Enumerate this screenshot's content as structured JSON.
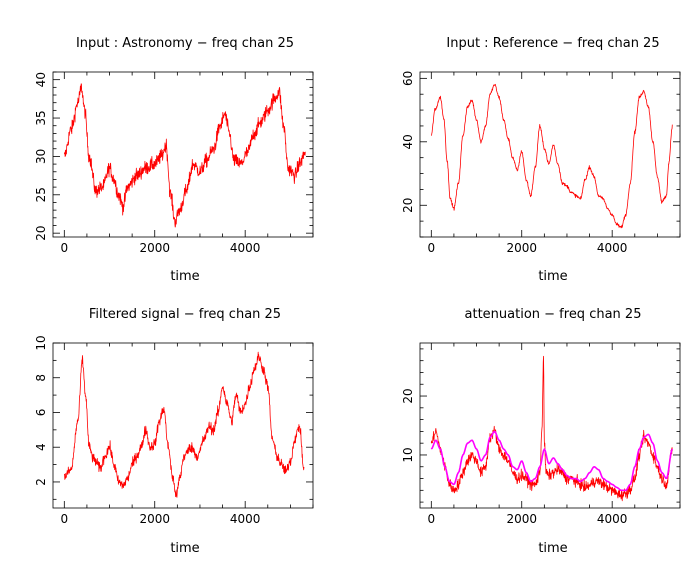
{
  "colors": {
    "series_main": "#ff0000",
    "series_model": "#ff00ff",
    "axes": "#000000",
    "background": "#ffffff"
  },
  "chart_data": [
    {
      "type": "line",
      "title": "Input : Astronomy − freq chan    25",
      "xlabel": "time",
      "ylabel": "",
      "xlim": [
        -250,
        5500
      ],
      "ylim": [
        19.5,
        41
      ],
      "xticks": [
        0,
        2000,
        4000
      ],
      "yticks": [
        20,
        25,
        30,
        35,
        40
      ],
      "x_ticklabels": [
        "0",
        "2000",
        "4000"
      ],
      "y_ticklabels": [
        "20",
        "25",
        "30",
        "35",
        "40"
      ],
      "y_ticklabel_rotation": "vertical",
      "grid": false,
      "series": [
        {
          "color": "#ff0000",
          "x": [
            0,
            150,
            300,
            380,
            450,
            550,
            700,
            850,
            1000,
            1100,
            1200,
            1300,
            1400,
            1600,
            1800,
            2000,
            2150,
            2250,
            2350,
            2450,
            2550,
            2700,
            2850,
            3000,
            3150,
            3300,
            3450,
            3550,
            3650,
            3750,
            3900,
            4050,
            4200,
            4350,
            4500,
            4650,
            4750,
            4850,
            4950,
            5100,
            5200,
            5330
          ],
          "y": [
            30,
            33.5,
            37,
            39,
            36,
            30,
            25.5,
            26,
            28.5,
            27,
            25,
            23.5,
            26,
            27.5,
            28.5,
            29,
            30,
            31.5,
            25,
            21.5,
            23,
            25.5,
            29,
            28,
            29.5,
            31,
            34,
            35.5,
            33,
            29.5,
            29,
            30.5,
            33,
            34.5,
            36,
            37.5,
            38.5,
            34,
            28.5,
            27.5,
            29,
            30.5
          ],
          "noise": 0.9
        }
      ]
    },
    {
      "type": "line",
      "title": "Input : Reference − freq chan    25",
      "xlabel": "time",
      "ylabel": "",
      "xlim": [
        -250,
        5500
      ],
      "ylim": [
        10,
        62
      ],
      "xticks": [
        0,
        2000,
        4000
      ],
      "yticks": [
        20,
        40,
        60
      ],
      "x_ticklabels": [
        "0",
        "2000",
        "4000"
      ],
      "y_ticklabels": [
        "20",
        "40",
        "60"
      ],
      "y_ticklabel_rotation": "vertical",
      "grid": false,
      "series": [
        {
          "color": "#ff0000",
          "x": [
            0,
            80,
            200,
            280,
            350,
            420,
            500,
            600,
            700,
            800,
            900,
            1000,
            1100,
            1200,
            1300,
            1400,
            1500,
            1600,
            1700,
            1800,
            1900,
            2000,
            2100,
            2200,
            2300,
            2400,
            2500,
            2600,
            2700,
            2800,
            2900,
            3000,
            3100,
            3200,
            3300,
            3400,
            3500,
            3600,
            3700,
            3800,
            3900,
            4000,
            4100,
            4200,
            4300,
            4400,
            4500,
            4600,
            4700,
            4800,
            4900,
            5000,
            5100,
            5200,
            5250,
            5330
          ],
          "y": [
            42,
            50,
            54,
            47,
            34,
            22,
            19,
            27,
            42,
            51,
            53,
            47,
            40,
            45,
            55,
            58,
            54,
            47,
            41,
            35,
            31,
            37,
            28,
            23,
            32,
            45,
            38,
            33,
            39,
            33,
            27,
            26,
            24,
            23,
            22,
            28,
            32,
            29,
            23,
            22,
            19,
            17,
            14,
            13,
            17,
            27,
            43,
            54,
            56,
            51,
            40,
            29,
            21,
            23,
            33,
            45
          ],
          "noise": 0.5
        }
      ]
    },
    {
      "type": "line",
      "title": "Filtered signal − freq chan    25",
      "xlabel": "time",
      "ylabel": "",
      "xlim": [
        -250,
        5500
      ],
      "ylim": [
        0.5,
        10
      ],
      "xticks": [
        0,
        2000,
        4000
      ],
      "yticks": [
        2,
        4,
        6,
        8,
        10
      ],
      "x_ticklabels": [
        "0",
        "2000",
        "4000"
      ],
      "y_ticklabels": [
        "2",
        "4",
        "6",
        "8",
        "10"
      ],
      "y_ticklabel_rotation": "vertical",
      "grid": false,
      "series": [
        {
          "color": "#ff0000",
          "x": [
            0,
            150,
            300,
            400,
            470,
            550,
            650,
            800,
            900,
            1000,
            1100,
            1200,
            1300,
            1400,
            1500,
            1600,
            1700,
            1800,
            1900,
            2000,
            2100,
            2200,
            2300,
            2400,
            2480,
            2550,
            2650,
            2800,
            2950,
            3100,
            3200,
            3300,
            3400,
            3500,
            3600,
            3700,
            3800,
            3900,
            4000,
            4100,
            4200,
            4300,
            4400,
            4500,
            4600,
            4700,
            4800,
            4900,
            5000,
            5100,
            5200,
            5300
          ],
          "y": [
            2.3,
            2.7,
            5.5,
            9,
            7,
            4,
            3.3,
            2.8,
            3.5,
            4,
            3,
            2,
            1.8,
            2.2,
            3,
            3.5,
            4,
            5,
            4,
            4.2,
            5.5,
            6.2,
            4,
            2.2,
            1.2,
            2.2,
            3.5,
            4,
            3.5,
            4.5,
            5.2,
            5,
            6,
            7.5,
            6.5,
            5.5,
            7,
            6,
            6.5,
            7.5,
            8.5,
            9.2,
            8.5,
            7.5,
            4.5,
            3.5,
            3,
            2.6,
            3.2,
            4.5,
            5.2,
            2.7
          ],
          "noise": 0.3
        }
      ]
    },
    {
      "type": "line",
      "title": "attenuation − freq chan    25",
      "xlabel": "time",
      "ylabel": "",
      "xlim": [
        -250,
        5500
      ],
      "ylim": [
        1,
        29
      ],
      "xticks": [
        0,
        2000,
        4000
      ],
      "yticks": [
        10,
        20
      ],
      "x_ticklabels": [
        "0",
        "2000",
        "4000"
      ],
      "y_ticklabels": [
        "10",
        "20"
      ],
      "y_ticklabel_rotation": "vertical",
      "grid": false,
      "series": [
        {
          "color": "#ff0000",
          "x": [
            0,
            100,
            200,
            300,
            400,
            500,
            600,
            700,
            800,
            900,
            1000,
            1100,
            1200,
            1300,
            1400,
            1500,
            1600,
            1700,
            1800,
            1900,
            2000,
            2100,
            2200,
            2300,
            2400,
            2450,
            2480,
            2500,
            2540,
            2600,
            2700,
            2800,
            2900,
            3000,
            3100,
            3200,
            3300,
            3400,
            3500,
            3600,
            3700,
            3800,
            3900,
            4000,
            4100,
            4200,
            4300,
            4400,
            4500,
            4600,
            4700,
            4800,
            4900,
            5000,
            5100,
            5200,
            5330
          ],
          "y": [
            12,
            14,
            11,
            8,
            5,
            4,
            5,
            7,
            9,
            10,
            9,
            7,
            8,
            13,
            14,
            11,
            10,
            9,
            7,
            6,
            6.5,
            6,
            5,
            5,
            7,
            15,
            27,
            12,
            7,
            6.5,
            7,
            7.5,
            7,
            6,
            6,
            5.5,
            5,
            4.5,
            4.8,
            5.5,
            5.5,
            5,
            4.5,
            4,
            3.5,
            3.2,
            3.5,
            4.2,
            6,
            10,
            13,
            12,
            10,
            8,
            6,
            5,
            11
          ],
          "noise": 0.9
        },
        {
          "color": "#ff00ff",
          "x": [
            0,
            100,
            200,
            300,
            400,
            500,
            600,
            700,
            800,
            900,
            1000,
            1100,
            1200,
            1300,
            1400,
            1500,
            1600,
            1700,
            1800,
            1900,
            2000,
            2100,
            2200,
            2300,
            2400,
            2500,
            2600,
            2700,
            2800,
            2900,
            3000,
            3100,
            3200,
            3300,
            3400,
            3500,
            3600,
            3700,
            3800,
            3900,
            4000,
            4100,
            4200,
            4300,
            4400,
            4500,
            4600,
            4700,
            4800,
            4900,
            5000,
            5100,
            5200,
            5330
          ],
          "y": [
            11,
            12.5,
            11,
            8,
            5.5,
            5,
            7,
            10,
            12,
            12.5,
            11,
            9,
            10,
            13,
            14,
            12.5,
            11,
            10,
            8,
            7.5,
            9,
            7,
            5.5,
            6,
            8,
            11,
            8.5,
            9.5,
            8.5,
            7.5,
            6.5,
            6,
            6,
            5.5,
            6,
            7,
            8,
            7.5,
            6,
            5.5,
            5,
            4.5,
            4,
            4,
            5,
            8,
            11,
            13,
            13.5,
            12,
            9,
            7,
            6,
            11
          ],
          "noise": 0
        }
      ]
    }
  ]
}
